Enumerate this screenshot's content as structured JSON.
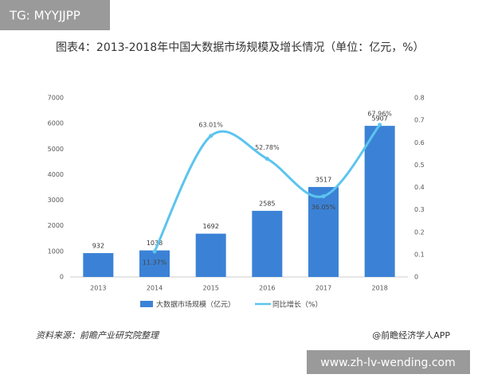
{
  "watermark_top": "TG: MYYJJPP",
  "watermark_bottom": "www.zh-lv-wending.com",
  "source": "资料来源：前瞻产业研究院整理",
  "credit": "@前瞻经济学人APP",
  "chart_data": {
    "type": "bar-line",
    "title": "图表4：2013-2018年中国大数据市场规模及增长情况（单位：亿元，%）",
    "categories": [
      "2013",
      "2014",
      "2015",
      "2016",
      "2017",
      "2018"
    ],
    "series": [
      {
        "name": "大数据市场规模（亿元）",
        "type": "bar",
        "color": "#3b82d6",
        "values": [
          932,
          1038,
          1692,
          2585,
          3517,
          5907
        ]
      },
      {
        "name": "同比增长（%）",
        "type": "line",
        "axis": "y2",
        "color": "#5cc4ee",
        "values": [
          null,
          0.1137,
          0.6301,
          0.5278,
          0.3605,
          0.6796
        ],
        "value_labels": [
          null,
          "11.37%",
          "63.01%",
          "52.78%",
          "36.05%",
          "67.96%"
        ]
      }
    ],
    "ylim": [
      0,
      7000
    ],
    "yticks": [
      0,
      1000,
      2000,
      3000,
      4000,
      5000,
      6000,
      7000
    ],
    "y2lim": [
      0,
      0.8
    ],
    "y2ticks": [
      0,
      0.1,
      0.2,
      0.3,
      0.4,
      0.5,
      0.6,
      0.7,
      0.8
    ],
    "legend": "bottom"
  }
}
